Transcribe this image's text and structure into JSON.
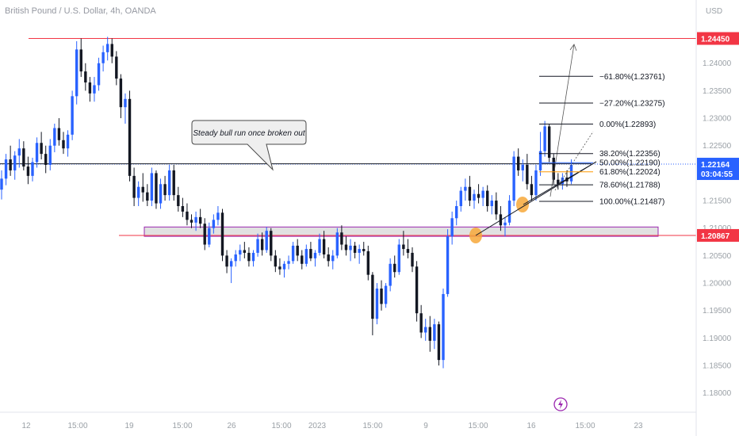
{
  "title": "British Pound / U.S. Dollar, 4h, OANDA",
  "currency": "USD",
  "colors": {
    "bull": "#2962ff",
    "bear": "#131722",
    "resistance": "#f23645",
    "support": "#f23645",
    "support_zone_border": "#9c27b0",
    "support_zone_fill": "#d9d9d9",
    "fib_blue": "#2962ff",
    "fib_orange": "#ff9800",
    "circle": "#f7a83a",
    "last_price_bg": "#2962ff"
  },
  "chart_data": {
    "type": "candlestick",
    "y_axis": {
      "ylim": [
        1.1765,
        1.2515
      ],
      "ticks": [
        1.24,
        1.235,
        1.23,
        1.225,
        1.215,
        1.21,
        1.205,
        1.2,
        1.195,
        1.19,
        1.185,
        1.18
      ],
      "tick_labels": [
        "1.24000",
        "1.23500",
        "1.23000",
        "1.22500",
        "1.21500",
        "1.21000",
        "1.20500",
        "1.20000",
        "1.19500",
        "1.19000",
        "1.18500",
        "1.18000"
      ]
    },
    "x_axis": {
      "ticks": [
        "12",
        "15:00",
        "19",
        "15:00",
        "26",
        "15:00",
        "2023",
        "15:00",
        "9",
        "15:00",
        "16",
        "15:00",
        "23"
      ]
    },
    "levels": [
      {
        "name": "resistance",
        "price": 1.2445,
        "label": "1.24450"
      },
      {
        "name": "support",
        "price": 1.20867,
        "label": "1.20867"
      },
      {
        "name": "last-price",
        "price": 1.22164,
        "label": "1.22164",
        "countdown": "03:04:55"
      }
    ],
    "support_zone": [
      1.2085,
      1.2102
    ],
    "fibonacci": [
      {
        "label": "−61.80%(1.23761)",
        "price": 1.23761
      },
      {
        "label": "−27.20%(1.23275)",
        "price": 1.23275
      },
      {
        "label": "0.00%(1.22893)",
        "price": 1.22893
      },
      {
        "label": "38.20%(1.22356)",
        "price": 1.22356
      },
      {
        "label": "50.00%(1.22190)",
        "price": 1.2219
      },
      {
        "label": "61.80%(1.22024)",
        "price": 1.22024
      },
      {
        "label": "78.60%(1.21788)",
        "price": 1.21788
      },
      {
        "label": "100.00%(1.21487)",
        "price": 1.21487
      }
    ],
    "annotation": "Steady bull run once broken out",
    "candles": [
      [
        1.217,
        1.2205,
        1.2152,
        1.219
      ],
      [
        1.219,
        1.2235,
        1.2178,
        1.2225
      ],
      [
        1.2225,
        1.225,
        1.2195,
        1.2205
      ],
      [
        1.2205,
        1.224,
        1.2188,
        1.2232
      ],
      [
        1.2232,
        1.2262,
        1.221,
        1.2245
      ],
      [
        1.2245,
        1.2258,
        1.2205,
        1.2212
      ],
      [
        1.2212,
        1.223,
        1.218,
        1.2195
      ],
      [
        1.2195,
        1.2228,
        1.2185,
        1.222
      ],
      [
        1.222,
        1.2265,
        1.221,
        1.2255
      ],
      [
        1.2255,
        1.2275,
        1.2225,
        1.2235
      ],
      [
        1.2235,
        1.225,
        1.22,
        1.2215
      ],
      [
        1.2215,
        1.2262,
        1.2205,
        1.225
      ],
      [
        1.225,
        1.229,
        1.2238,
        1.2282
      ],
      [
        1.2282,
        1.23,
        1.225,
        1.226
      ],
      [
        1.226,
        1.2275,
        1.2235,
        1.2245
      ],
      [
        1.2245,
        1.2278,
        1.223,
        1.227
      ],
      [
        1.227,
        1.235,
        1.226,
        1.234
      ],
      [
        1.234,
        1.244,
        1.2325,
        1.2425
      ],
      [
        1.2425,
        1.2445,
        1.2375,
        1.2385
      ],
      [
        1.2385,
        1.24,
        1.235,
        1.2365
      ],
      [
        1.2365,
        1.2375,
        1.233,
        1.2345
      ],
      [
        1.2345,
        1.2375,
        1.233,
        1.236
      ],
      [
        1.236,
        1.241,
        1.235,
        1.24
      ],
      [
        1.24,
        1.2432,
        1.2385,
        1.242
      ],
      [
        1.242,
        1.2448,
        1.2405,
        1.2435
      ],
      [
        1.2435,
        1.2445,
        1.24,
        1.2412
      ],
      [
        1.2412,
        1.2422,
        1.236,
        1.2372
      ],
      [
        1.2372,
        1.238,
        1.23,
        1.232
      ],
      [
        1.232,
        1.2345,
        1.229,
        1.2335
      ],
      [
        1.2335,
        1.235,
        1.2185,
        1.2195
      ],
      [
        1.2195,
        1.221,
        1.214,
        1.2155
      ],
      [
        1.2155,
        1.2185,
        1.214,
        1.2175
      ],
      [
        1.2175,
        1.22,
        1.2148,
        1.2165
      ],
      [
        1.2165,
        1.218,
        1.214,
        1.215
      ],
      [
        1.215,
        1.221,
        1.214,
        1.22
      ],
      [
        1.22,
        1.2205,
        1.2135,
        1.2145
      ],
      [
        1.2145,
        1.219,
        1.2135,
        1.218
      ],
      [
        1.218,
        1.2195,
        1.215,
        1.216
      ],
      [
        1.216,
        1.2215,
        1.215,
        1.2205
      ],
      [
        1.2205,
        1.2215,
        1.215,
        1.216
      ],
      [
        1.216,
        1.2175,
        1.213,
        1.214
      ],
      [
        1.214,
        1.2155,
        1.212,
        1.213
      ],
      [
        1.213,
        1.2145,
        1.2105,
        1.2115
      ],
      [
        1.2115,
        1.2125,
        1.21,
        1.211
      ],
      [
        1.211,
        1.213,
        1.2095,
        1.212
      ],
      [
        1.212,
        1.2135,
        1.21,
        1.2108
      ],
      [
        1.2108,
        1.2118,
        1.206,
        1.207
      ],
      [
        1.207,
        1.211,
        1.2065,
        1.21
      ],
      [
        1.21,
        1.2125,
        1.209,
        1.2115
      ],
      [
        1.2115,
        1.214,
        1.2105,
        1.2128
      ],
      [
        1.2128,
        1.2135,
        1.204,
        1.205
      ],
      [
        1.205,
        1.206,
        1.2018,
        1.203
      ],
      [
        1.203,
        1.2045,
        1.2,
        1.204
      ],
      [
        1.204,
        1.206,
        1.203,
        1.2052
      ],
      [
        1.2052,
        1.207,
        1.204,
        1.206
      ],
      [
        1.206,
        1.2075,
        1.2045,
        1.2055
      ],
      [
        1.2055,
        1.2065,
        1.203,
        1.204
      ],
      [
        1.204,
        1.206,
        1.203,
        1.2055
      ],
      [
        1.2055,
        1.209,
        1.2048,
        1.208
      ],
      [
        1.208,
        1.2092,
        1.205,
        1.206
      ],
      [
        1.206,
        1.2102,
        1.2055,
        1.2095
      ],
      [
        1.2095,
        1.21,
        1.204,
        1.205
      ],
      [
        1.205,
        1.206,
        1.202,
        1.203
      ],
      [
        1.203,
        1.2045,
        1.2015,
        1.2025
      ],
      [
        1.2025,
        1.204,
        1.201,
        1.2035
      ],
      [
        1.2035,
        1.205,
        1.2025,
        1.204
      ],
      [
        1.204,
        1.2075,
        1.2035,
        1.2068
      ],
      [
        1.2068,
        1.208,
        1.204,
        1.205
      ],
      [
        1.205,
        1.206,
        1.2025,
        1.2035
      ],
      [
        1.2035,
        1.207,
        1.203,
        1.2062
      ],
      [
        1.2062,
        1.2075,
        1.204,
        1.2045
      ],
      [
        1.2045,
        1.206,
        1.203,
        1.2055
      ],
      [
        1.2055,
        1.209,
        1.205,
        1.208
      ],
      [
        1.208,
        1.2095,
        1.2045,
        1.2052
      ],
      [
        1.2052,
        1.2065,
        1.203,
        1.204
      ],
      [
        1.204,
        1.206,
        1.2025,
        1.205
      ],
      [
        1.205,
        1.21,
        1.2045,
        1.2092
      ],
      [
        1.2092,
        1.2105,
        1.206,
        1.207
      ],
      [
        1.207,
        1.2085,
        1.205,
        1.206
      ],
      [
        1.206,
        1.208,
        1.204,
        1.2068
      ],
      [
        1.2068,
        1.2075,
        1.2045,
        1.2055
      ],
      [
        1.2055,
        1.207,
        1.2035,
        1.2062
      ],
      [
        1.2062,
        1.2075,
        1.205,
        1.2058
      ],
      [
        1.2058,
        1.2068,
        1.2005,
        1.2015
      ],
      [
        1.2015,
        1.202,
        1.1905,
        1.1935
      ],
      [
        1.1935,
        1.2,
        1.1925,
        1.199
      ],
      [
        1.199,
        1.2005,
        1.195,
        1.1962
      ],
      [
        1.1962,
        1.2,
        1.1955,
        1.1995
      ],
      [
        1.1995,
        1.2045,
        1.1985,
        1.2035
      ],
      [
        1.2035,
        1.205,
        1.201,
        1.202
      ],
      [
        1.202,
        1.208,
        1.2015,
        1.207
      ],
      [
        1.207,
        1.2095,
        1.205,
        1.2062
      ],
      [
        1.2062,
        1.208,
        1.2045,
        1.2055
      ],
      [
        1.2055,
        1.2065,
        1.202,
        1.203
      ],
      [
        1.203,
        1.204,
        1.193,
        1.1945
      ],
      [
        1.1945,
        1.196,
        1.19,
        1.191
      ],
      [
        1.191,
        1.1935,
        1.1895,
        1.192
      ],
      [
        1.192,
        1.194,
        1.1875,
        1.1895
      ],
      [
        1.1895,
        1.1935,
        1.188,
        1.1925
      ],
      [
        1.1925,
        1.193,
        1.185,
        1.186
      ],
      [
        1.186,
        1.199,
        1.1845,
        1.198
      ],
      [
        1.198,
        1.2098,
        1.1975,
        1.2085
      ],
      [
        1.2085,
        1.213,
        1.207,
        1.2118
      ],
      [
        1.2118,
        1.215,
        1.2105,
        1.214
      ],
      [
        1.214,
        1.2175,
        1.213,
        1.2168
      ],
      [
        1.2168,
        1.219,
        1.215,
        1.2175
      ],
      [
        1.2175,
        1.2195,
        1.214,
        1.215
      ],
      [
        1.215,
        1.217,
        1.2135,
        1.2162
      ],
      [
        1.2162,
        1.218,
        1.2145,
        1.2155
      ],
      [
        1.2155,
        1.2175,
        1.214,
        1.2168
      ],
      [
        1.2168,
        1.2178,
        1.213,
        1.214
      ],
      [
        1.214,
        1.216,
        1.2125,
        1.215
      ],
      [
        1.215,
        1.2165,
        1.2115,
        1.2125
      ],
      [
        1.2125,
        1.214,
        1.2095,
        1.2105
      ],
      [
        1.2105,
        1.212,
        1.2085,
        1.211
      ],
      [
        1.211,
        1.216,
        1.2105,
        1.215
      ],
      [
        1.215,
        1.224,
        1.214,
        1.223
      ],
      [
        1.223,
        1.2245,
        1.2195,
        1.2205
      ],
      [
        1.2205,
        1.2225,
        1.2185,
        1.2215
      ],
      [
        1.2215,
        1.2235,
        1.217,
        1.218
      ],
      [
        1.218,
        1.2195,
        1.215,
        1.216
      ],
      [
        1.216,
        1.2215,
        1.215,
        1.2205
      ],
      [
        1.2205,
        1.2275,
        1.2195,
        1.224
      ],
      [
        1.224,
        1.2295,
        1.223,
        1.2285
      ],
      [
        1.2285,
        1.229,
        1.222,
        1.2228
      ],
      [
        1.2228,
        1.2235,
        1.218,
        1.2188
      ],
      [
        1.2188,
        1.22,
        1.217,
        1.218
      ],
      [
        1.218,
        1.22,
        1.217,
        1.2192
      ],
      [
        1.2192,
        1.2205,
        1.2175,
        1.2185
      ],
      [
        1.2185,
        1.2225,
        1.218,
        1.2215
      ]
    ]
  },
  "toolbar": {
    "alert_icon": "lightning-icon"
  }
}
